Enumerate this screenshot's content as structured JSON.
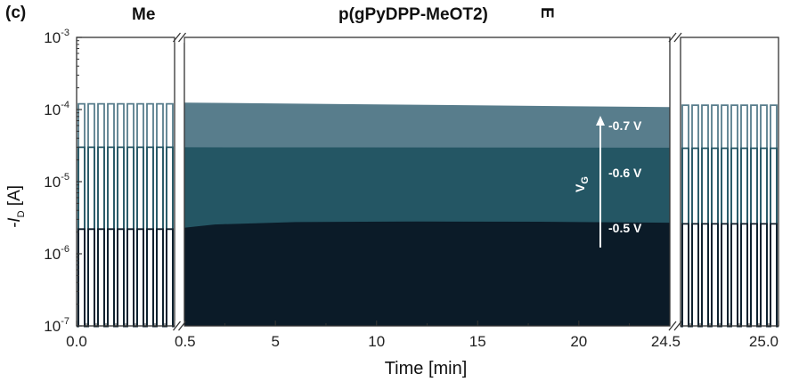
{
  "panel_label": "(c)",
  "header_left": "Me",
  "header_title": "p(gPyDPP-MeOT2)",
  "header_right_fragment": "E",
  "chart_data": {
    "type": "area",
    "xlabel": "Time [min]",
    "ylabel": {
      "main": "-I",
      "sub": "D",
      "unit": " [A]"
    },
    "yscale": "log",
    "ylim": [
      1e-07,
      0.001
    ],
    "y_ticks": [
      {
        "value": 0.001,
        "base": "10",
        "exp": "-3"
      },
      {
        "value": 0.0001,
        "base": "10",
        "exp": "-4"
      },
      {
        "value": 1e-05,
        "base": "10",
        "exp": "-5"
      },
      {
        "value": 1e-06,
        "base": "10",
        "exp": "-6"
      },
      {
        "value": 1e-07,
        "base": "10",
        "exp": "-7"
      }
    ],
    "x_segments": [
      {
        "range": [
          0.0,
          0.5
        ],
        "tick_labels": [
          "0.0",
          "0.5"
        ],
        "pulses": 10
      },
      {
        "range": [
          0.5,
          24.5
        ],
        "tick_labels": [
          "5",
          "10",
          "15",
          "20"
        ],
        "tick_values": [
          5,
          10,
          15,
          20
        ]
      },
      {
        "range": [
          24.5,
          25.0
        ],
        "tick_labels": [
          "24.5",
          "25.0"
        ],
        "pulses": 10
      }
    ],
    "vg_label": {
      "main": "V",
      "sub": "G"
    },
    "series": [
      {
        "name": "-0.7 V",
        "color": "#587d8c",
        "continuous": {
          "x": [
            0.5,
            24.5
          ],
          "y": [
            0.000125,
            0.000108
          ]
        },
        "pulse_level_start": 0.00012,
        "pulse_level_end": 0.000115
      },
      {
        "name": "-0.6 V",
        "color": "#245664",
        "continuous": {
          "x": [
            0.5,
            24.5
          ],
          "y": [
            3e-05,
            2.95e-05
          ]
        },
        "pulse_level_start": 3e-05,
        "pulse_level_end": 2.9e-05
      },
      {
        "name": "-0.5 V",
        "color": "#0b1b28",
        "continuous": {
          "x": [
            0.5,
            2.0,
            6.0,
            12.0,
            18.0,
            24.5
          ],
          "y": [
            2.3e-06,
            2.55e-06,
            2.75e-06,
            2.8e-06,
            2.78e-06,
            2.7e-06
          ]
        },
        "pulse_level_start": 2.2e-06,
        "pulse_level_end": 2.6e-06
      }
    ]
  }
}
